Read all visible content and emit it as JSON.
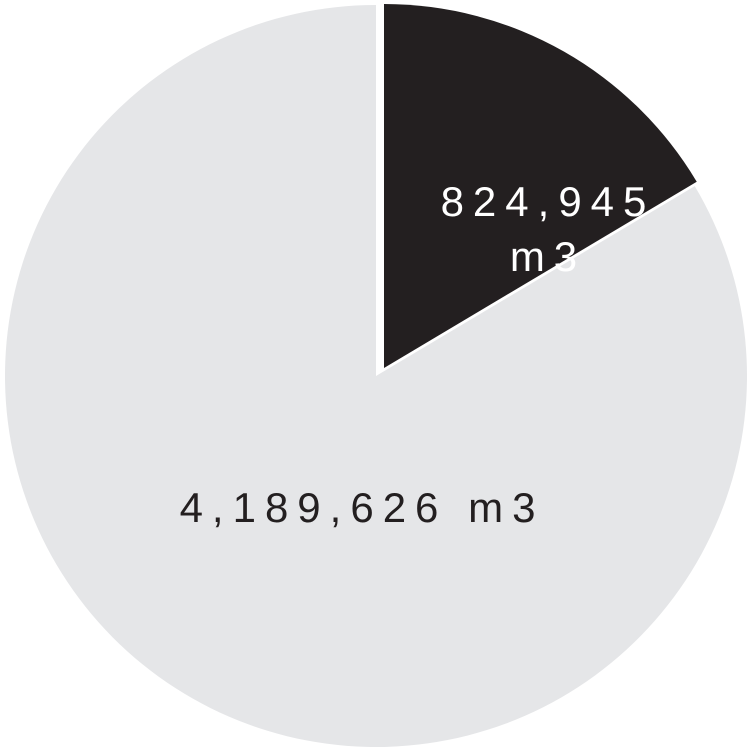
{
  "chart_data": {
    "type": "pie",
    "title": "",
    "slices": [
      {
        "label": "824,945 m3",
        "label_lines": [
          "824,945",
          "m3"
        ],
        "value": 824945,
        "color": "#231f20",
        "text_color": "#ffffff",
        "exploded": true
      },
      {
        "label": "4,189,626 m3",
        "label_lines": [
          "4,189,626 m3"
        ],
        "value": 4189626,
        "color": "#e5e6e8",
        "text_color": "#231f20",
        "exploded": false
      }
    ],
    "start": "12 o'clock",
    "direction": "clockwise",
    "legend": "none"
  }
}
